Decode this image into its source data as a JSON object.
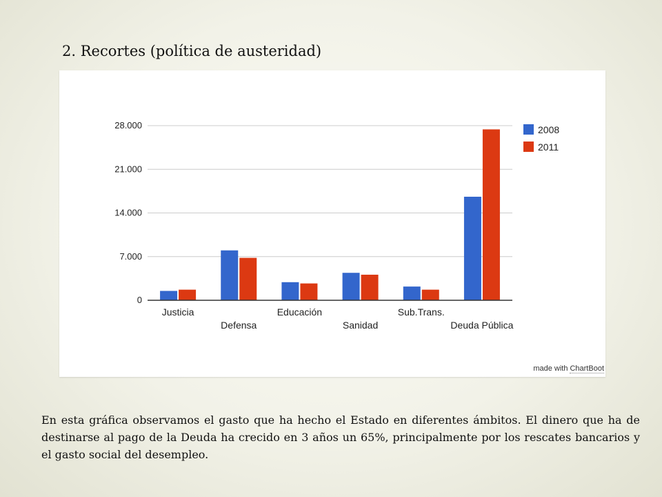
{
  "slide": {
    "title": "2. Recortes (política de austeridad)",
    "caption": "En esta gráfica observamos el gasto que ha hecho el Estado en diferentes ámbitos. El dinero que ha de destinarse al pago de la Deuda ha crecido en 3 años un 65%, principalmente por los rescates bancarios y el gasto social del desempleo."
  },
  "credit": {
    "prefix": "made with",
    "brand": "ChartBoot"
  },
  "chart_data": {
    "type": "bar",
    "title": "",
    "xlabel": "",
    "ylabel": "",
    "categories": [
      "Justicia",
      "Defensa",
      "Educación",
      "Sanidad",
      "Sub.Trans.",
      "Deuda Pública"
    ],
    "series": [
      {
        "name": "2008",
        "color": "#3366cc",
        "values": [
          1500,
          8000,
          2900,
          4400,
          2200,
          16600
        ]
      },
      {
        "name": "2011",
        "color": "#dc3912",
        "values": [
          1700,
          6800,
          2700,
          4100,
          1700,
          27400
        ]
      }
    ],
    "ylim": [
      0,
      28000
    ],
    "yticks": [
      0,
      7000,
      14000,
      21000,
      28000
    ],
    "ytick_labels": [
      "0",
      "7.000",
      "14.000",
      "21.000",
      "28.000"
    ],
    "grid": true,
    "legend_position": "top-right",
    "x_labels_staggered": true
  }
}
